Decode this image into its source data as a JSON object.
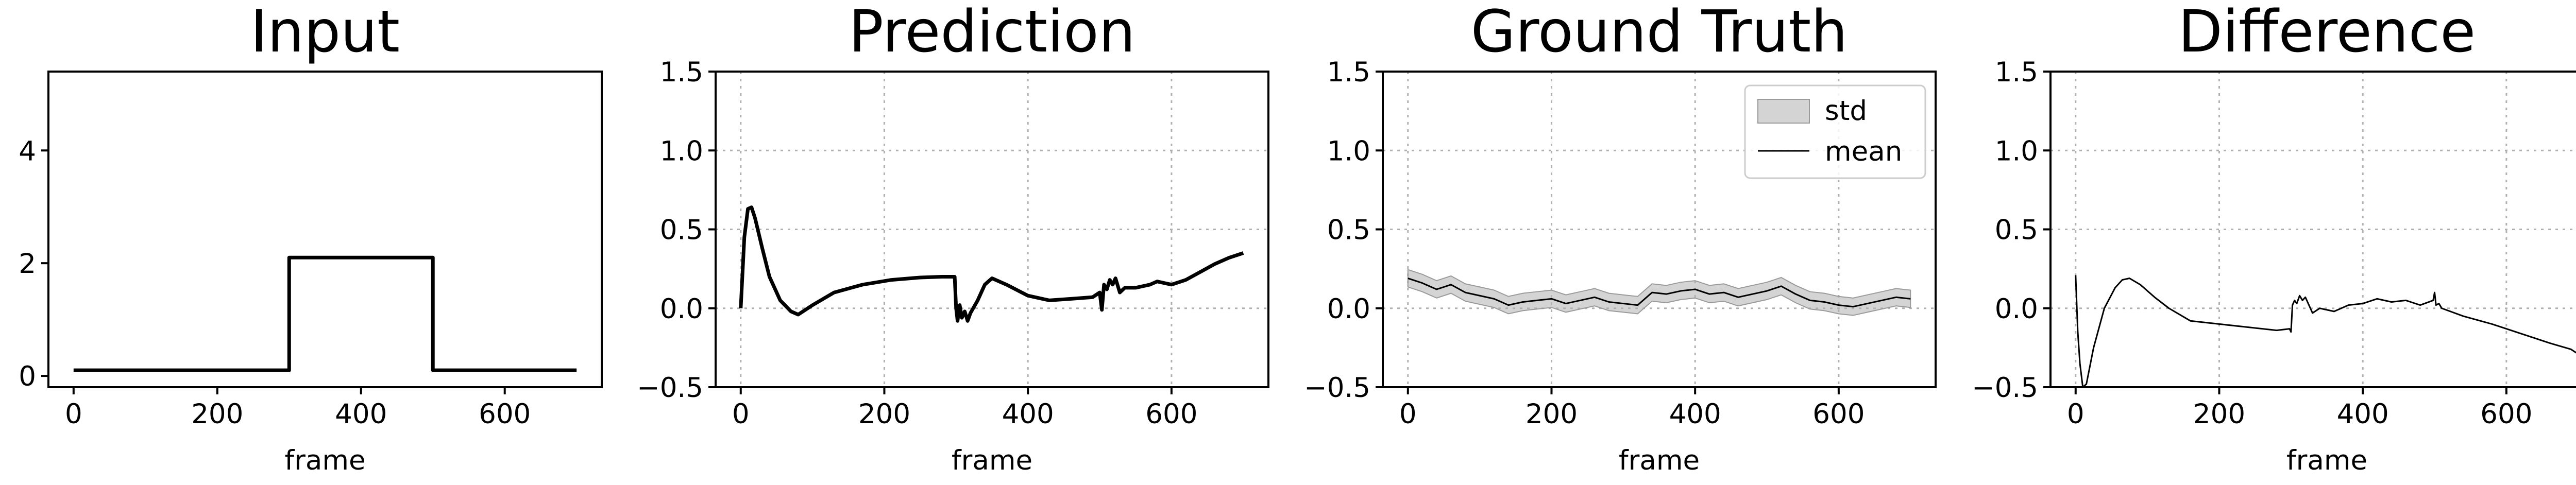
{
  "chart_data": [
    {
      "type": "line",
      "title": "Input",
      "xlabel": "frame",
      "ylabel": "",
      "xlim": [
        -35,
        735
      ],
      "ylim": [
        -0.2,
        5.4
      ],
      "xticks": [
        0,
        200,
        400,
        600
      ],
      "yticks": [
        0,
        2,
        4
      ],
      "grid": false,
      "series": [
        {
          "x": [
            0,
            300,
            300,
            500,
            500,
            700
          ],
          "y": [
            0.1,
            0.1,
            2.1,
            2.1,
            0.1,
            0.1
          ]
        }
      ]
    },
    {
      "type": "line",
      "title": "Prediction",
      "xlabel": "frame",
      "ylabel": "",
      "xlim": [
        -35,
        735
      ],
      "ylim": [
        -0.5,
        1.5
      ],
      "xticks": [
        0,
        200,
        400,
        600
      ],
      "yticks": [
        -0.5,
        0.0,
        0.5,
        1.0,
        1.5
      ],
      "grid": true,
      "series": [
        {
          "x": [
            0,
            5,
            10,
            15,
            20,
            30,
            40,
            55,
            70,
            80,
            100,
            130,
            170,
            210,
            250,
            280,
            298,
            300,
            302,
            305,
            308,
            312,
            316,
            320,
            330,
            340,
            350,
            370,
            400,
            430,
            460,
            490,
            500,
            503,
            506,
            510,
            514,
            518,
            522,
            528,
            535,
            550,
            570,
            580,
            600,
            620,
            640,
            660,
            680,
            700
          ],
          "y": [
            0.0,
            0.45,
            0.63,
            0.64,
            0.57,
            0.38,
            0.2,
            0.05,
            -0.02,
            -0.04,
            0.02,
            0.1,
            0.15,
            0.18,
            0.195,
            0.2,
            0.2,
            0.0,
            -0.08,
            0.02,
            -0.06,
            -0.02,
            -0.08,
            -0.03,
            0.05,
            0.15,
            0.19,
            0.15,
            0.08,
            0.05,
            0.06,
            0.07,
            0.1,
            -0.01,
            0.15,
            0.12,
            0.18,
            0.15,
            0.19,
            0.1,
            0.13,
            0.13,
            0.15,
            0.17,
            0.15,
            0.18,
            0.23,
            0.28,
            0.32,
            0.35
          ]
        }
      ]
    },
    {
      "type": "area",
      "title": "Ground Truth",
      "xlabel": "frame",
      "ylabel": "",
      "xlim": [
        -35,
        735
      ],
      "ylim": [
        -0.5,
        1.5
      ],
      "xticks": [
        0,
        200,
        400,
        600
      ],
      "yticks": [
        -0.5,
        0.0,
        0.5,
        1.0,
        1.5
      ],
      "grid": true,
      "legend": {
        "position": "top-right",
        "entries": [
          "std",
          "mean"
        ]
      },
      "series": [
        {
          "name": "mean",
          "x": [
            0,
            20,
            40,
            60,
            80,
            100,
            120,
            140,
            160,
            180,
            200,
            220,
            240,
            260,
            280,
            300,
            320,
            340,
            360,
            380,
            400,
            420,
            440,
            460,
            480,
            500,
            520,
            540,
            560,
            580,
            600,
            620,
            640,
            660,
            680,
            700
          ],
          "y": [
            0.19,
            0.16,
            0.12,
            0.15,
            0.1,
            0.08,
            0.06,
            0.02,
            0.04,
            0.05,
            0.06,
            0.03,
            0.05,
            0.07,
            0.04,
            0.03,
            0.02,
            0.1,
            0.09,
            0.11,
            0.12,
            0.09,
            0.1,
            0.07,
            0.09,
            0.11,
            0.14,
            0.09,
            0.05,
            0.04,
            0.02,
            0.01,
            0.03,
            0.05,
            0.07,
            0.06
          ],
          "std": 0.055
        }
      ]
    },
    {
      "type": "line",
      "title": "Difference",
      "xlabel": "frame",
      "ylabel": "",
      "xlim": [
        -35,
        735
      ],
      "ylim": [
        -0.5,
        1.5
      ],
      "xticks": [
        0,
        200,
        400,
        600
      ],
      "yticks": [
        -0.5,
        0.0,
        0.5,
        1.0,
        1.5
      ],
      "grid": true,
      "series": [
        {
          "x": [
            0,
            3,
            6,
            10,
            15,
            25,
            40,
            55,
            65,
            75,
            90,
            110,
            130,
            160,
            200,
            240,
            280,
            298,
            300,
            302,
            305,
            308,
            312,
            316,
            320,
            330,
            340,
            360,
            380,
            400,
            420,
            440,
            460,
            480,
            498,
            500,
            502,
            506,
            510,
            540,
            580,
            620,
            660,
            690,
            700
          ],
          "y": [
            0.21,
            -0.15,
            -0.35,
            -0.5,
            -0.48,
            -0.25,
            0.0,
            0.13,
            0.18,
            0.19,
            0.15,
            0.07,
            0.0,
            -0.08,
            -0.1,
            -0.12,
            -0.14,
            -0.13,
            -0.15,
            0.02,
            0.05,
            0.03,
            0.08,
            0.05,
            0.07,
            -0.03,
            0.0,
            -0.02,
            0.02,
            0.03,
            0.06,
            0.04,
            0.05,
            0.02,
            0.05,
            0.1,
            0.02,
            0.03,
            0.0,
            -0.05,
            -0.1,
            -0.16,
            -0.22,
            -0.26,
            -0.29
          ]
        }
      ]
    }
  ]
}
